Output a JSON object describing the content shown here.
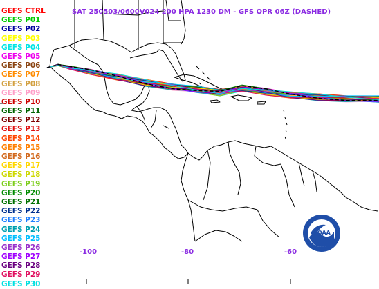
{
  "title": "SAT 250503/0600V024  200 HPA 1230 DM - GFS OPR 06Z (DASHED)",
  "legend": [
    {
      "label": "GEFS CTRL",
      "color": "#ff0000"
    },
    {
      "label": "GEFS P01",
      "color": "#00cc00"
    },
    {
      "label": "GEFS P02",
      "color": "#0000a0"
    },
    {
      "label": "GEFS P03",
      "color": "#ffff00"
    },
    {
      "label": "GEFS P04",
      "color": "#00e5e5"
    },
    {
      "label": "GEFS P05",
      "color": "#ee00ee"
    },
    {
      "label": "GEFS P06",
      "color": "#8b4513"
    },
    {
      "label": "GEFS P07",
      "color": "#ff8c00"
    },
    {
      "label": "GEFS P08",
      "color": "#d2a040"
    },
    {
      "label": "GEFS P09",
      "color": "#ff9ec8"
    },
    {
      "label": "GEFS P10",
      "color": "#cc0000"
    },
    {
      "label": "GEFS P11",
      "color": "#006400"
    },
    {
      "label": "GEFS P12",
      "color": "#800000"
    },
    {
      "label": "GEFS P13",
      "color": "#e01010"
    },
    {
      "label": "GEFS P14",
      "color": "#ff4500"
    },
    {
      "label": "GEFS P15",
      "color": "#ff7f00"
    },
    {
      "label": "GEFS P16",
      "color": "#d2691e"
    },
    {
      "label": "GEFS P17",
      "color": "#ffd700"
    },
    {
      "label": "GEFS P18",
      "color": "#cdd800"
    },
    {
      "label": "GEFS P19",
      "color": "#7ccd1a"
    },
    {
      "label": "GEFS P20",
      "color": "#008b00"
    },
    {
      "label": "GEFS P21",
      "color": "#007000"
    },
    {
      "label": "GEFS P22",
      "color": "#00308f"
    },
    {
      "label": "GEFS P23",
      "color": "#1e7fff"
    },
    {
      "label": "GEFS P24",
      "color": "#00a0b0"
    },
    {
      "label": "GEFS P25",
      "color": "#00bfff"
    },
    {
      "label": "GEFS P26",
      "color": "#9932cc"
    },
    {
      "label": "GEFS P27",
      "color": "#a000ff"
    },
    {
      "label": "GEFS P28",
      "color": "#6a0080"
    },
    {
      "label": "GEFS P29",
      "color": "#e01060"
    },
    {
      "label": "GEFS P30",
      "color": "#00e0e0"
    }
  ],
  "longitude_labels": [
    "-100",
    "-80",
    "-60"
  ],
  "opr_color": "#000000",
  "label_color": "#8a2be2",
  "logo_text": "NOAA"
}
